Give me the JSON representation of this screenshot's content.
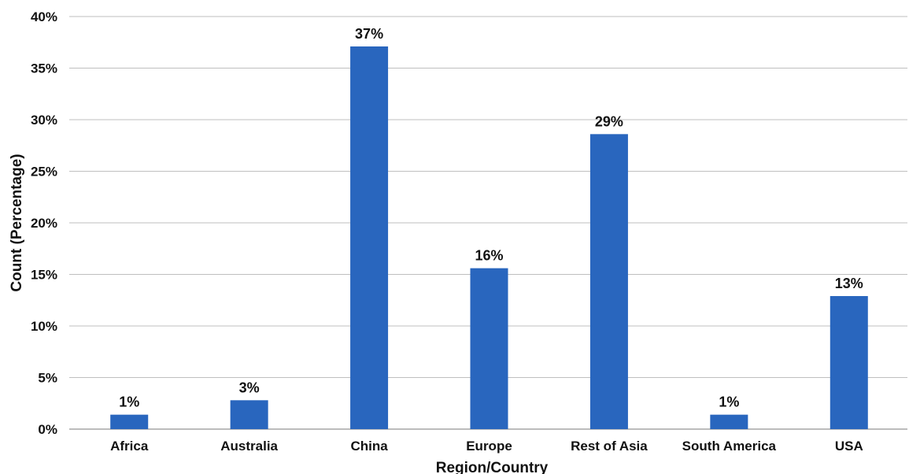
{
  "chart_data": {
    "type": "bar",
    "title": "",
    "xlabel": "Region/Country",
    "ylabel": "Count (Percentage)",
    "categories": [
      "Africa",
      "Australia",
      "China",
      "Europe",
      "Rest of Asia",
      "South America",
      "USA"
    ],
    "values": [
      1.4,
      2.8,
      37.1,
      15.6,
      28.6,
      1.4,
      12.9
    ],
    "data_labels": [
      "1%",
      "3%",
      "37%",
      "16%",
      "29%",
      "1%",
      "13%"
    ],
    "ylim": [
      0,
      40
    ],
    "yticks": [
      0,
      5,
      10,
      15,
      20,
      25,
      30,
      35,
      40
    ],
    "ytick_labels": [
      "0%",
      "5%",
      "10%",
      "15%",
      "20%",
      "25%",
      "30%",
      "35%",
      "40%"
    ],
    "grid": true,
    "legend": "none",
    "colors": {
      "bar": "#2966BE",
      "grid": "#BFBFBF",
      "axis": "#A6A6A6",
      "text": "#111111"
    }
  }
}
